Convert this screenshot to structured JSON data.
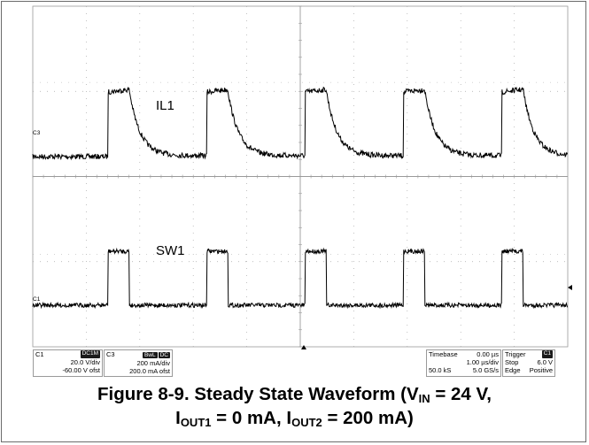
{
  "scope": {
    "traces": [
      {
        "name": "IL1",
        "ref_label": "C3",
        "color": "#000000"
      },
      {
        "name": "SW1",
        "ref_label": "C1",
        "color": "#000000"
      }
    ],
    "pulses": 5,
    "colors": {
      "grid": "#9a9a9a",
      "grid_dots": "#a8a8a8",
      "trace": "#000000",
      "frame": "#6b6b6b"
    }
  },
  "channel_c1": {
    "name": "C1",
    "badge": "DC1M",
    "scale": "20.0 V/div",
    "offset": "-60.00 V ofst"
  },
  "channel_c3": {
    "name": "C3",
    "badge_bw": "BwL",
    "badge_dc": "DC",
    "scale": "200 mA/div",
    "offset": "200.0 mA ofst"
  },
  "timebase": {
    "label": "Timebase",
    "position": "0.00 µs",
    "per_div": "1.00 µs/div",
    "samples": "50.0 kS",
    "rate": "5.0 GS/s"
  },
  "trigger": {
    "label": "Trigger",
    "badge": "C1",
    "mode": "Stop",
    "level": "6.0 V",
    "type": "Edge",
    "slope": "Positive"
  },
  "caption": {
    "line1_prefix": "Figure 8-9. Steady State Waveform (V",
    "line1_sub": "IN",
    "line1_suffix": " = 24 V,",
    "line2_i1": "I",
    "line2_sub1": "OUT1",
    "line2_mid": " = 0 mA, I",
    "line2_sub2": "OUT2",
    "line2_suffix": " = 200 mA)"
  }
}
